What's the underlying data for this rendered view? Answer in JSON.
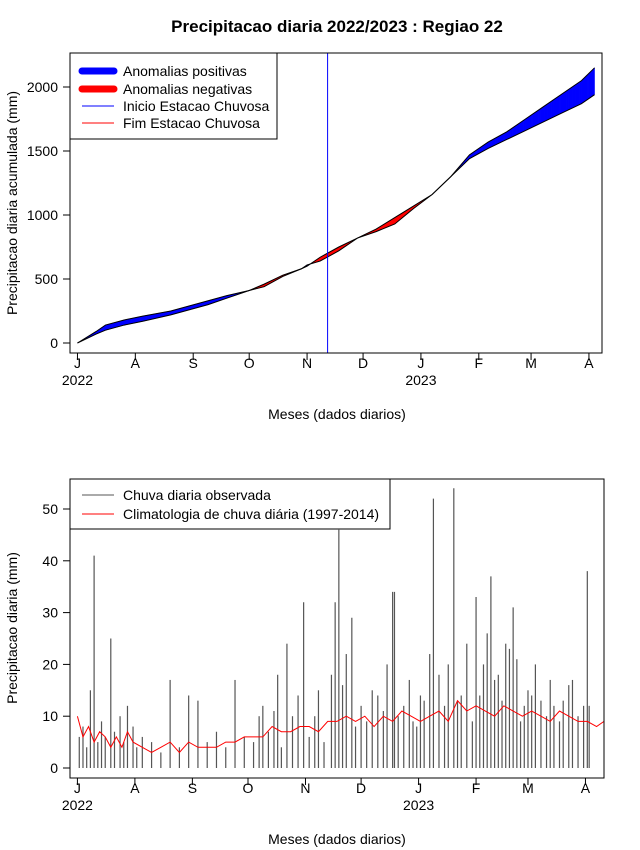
{
  "chart_data": [
    {
      "type": "area",
      "title": "Precipitacao diaria 2022/2023 : Regiao 22",
      "xlabel": "Meses (dados diarios)",
      "ylabel": "Precipitacao diaria acumulada (mm)",
      "ylim": [
        0,
        2200
      ],
      "yticks": [
        0,
        500,
        1000,
        1500,
        2000
      ],
      "xlim_days": [
        -4,
        281
      ],
      "month_ticks": [
        {
          "label": "J",
          "day": 0
        },
        {
          "label": "A",
          "day": 31
        },
        {
          "label": "S",
          "day": 62
        },
        {
          "label": "O",
          "day": 92
        },
        {
          "label": "N",
          "day": 123
        },
        {
          "label": "D",
          "day": 153
        },
        {
          "label": "J",
          "day": 184
        },
        {
          "label": "F",
          "day": 215
        },
        {
          "label": "M",
          "day": 243
        },
        {
          "label": "A",
          "day": 274
        }
      ],
      "year_labels": [
        {
          "label": "2022",
          "day": 0
        },
        {
          "label": "2023",
          "day": 184
        }
      ],
      "rainy_season_start_day": 134,
      "observed_cumulative": {
        "days": [
          0,
          10,
          15,
          25,
          35,
          50,
          60,
          70,
          80,
          92,
          100,
          110,
          120,
          123,
          130,
          140,
          150,
          160,
          170,
          180,
          190,
          200,
          210,
          220,
          230,
          240,
          250,
          260,
          270,
          277
        ],
        "values": [
          0,
          90,
          140,
          180,
          210,
          250,
          290,
          330,
          370,
          410,
          440,
          520,
          580,
          610,
          640,
          720,
          820,
          870,
          930,
          1050,
          1160,
          1300,
          1470,
          1570,
          1650,
          1750,
          1850,
          1950,
          2050,
          2150
        ]
      },
      "climatology_cumulative": {
        "days": [
          0,
          10,
          15,
          25,
          35,
          50,
          60,
          70,
          80,
          92,
          100,
          110,
          120,
          123,
          130,
          140,
          150,
          160,
          170,
          180,
          190,
          200,
          210,
          220,
          230,
          240,
          250,
          260,
          270,
          277
        ],
        "values": [
          0,
          70,
          100,
          140,
          170,
          220,
          260,
          300,
          350,
          410,
          460,
          530,
          580,
          600,
          670,
          750,
          820,
          890,
          980,
          1070,
          1160,
          1300,
          1440,
          1520,
          1590,
          1660,
          1730,
          1800,
          1870,
          1940
        ]
      },
      "legend": {
        "position": "top-left",
        "entries": [
          {
            "label": "Anomalias positivas",
            "color": "#0000ff",
            "style": "thick"
          },
          {
            "label": "Anomalias negativas",
            "color": "#ff0000",
            "style": "thick"
          },
          {
            "label": "Inicio Estacao Chuvosa",
            "color": "#0000ff",
            "style": "thin"
          },
          {
            "label": "Fim Estacao Chuvosa",
            "color": "#ff0000",
            "style": "thin"
          }
        ]
      }
    },
    {
      "type": "bar",
      "xlabel": "Meses (dados diarios)",
      "ylabel": "Precipitacao diaria (mm)",
      "ylim": [
        0,
        55
      ],
      "yticks": [
        0,
        10,
        20,
        30,
        40,
        50
      ],
      "xlim_days": [
        -4,
        284
      ],
      "month_ticks": [
        {
          "label": "J",
          "day": 0
        },
        {
          "label": "A",
          "day": 31
        },
        {
          "label": "S",
          "day": 62
        },
        {
          "label": "O",
          "day": 92
        },
        {
          "label": "N",
          "day": 123
        },
        {
          "label": "D",
          "day": 153
        },
        {
          "label": "J",
          "day": 184
        },
        {
          "label": "F",
          "day": 215
        },
        {
          "label": "M",
          "day": 243
        },
        {
          "label": "A",
          "day": 274
        }
      ],
      "year_labels": [
        {
          "label": "2022",
          "day": 0
        },
        {
          "label": "2023",
          "day": 184
        }
      ],
      "observed_daily_peaks": [
        {
          "day": 1,
          "value": 6
        },
        {
          "day": 3,
          "value": 8
        },
        {
          "day": 5,
          "value": 4
        },
        {
          "day": 7,
          "value": 15
        },
        {
          "day": 9,
          "value": 41
        },
        {
          "day": 11,
          "value": 5
        },
        {
          "day": 13,
          "value": 9
        },
        {
          "day": 15,
          "value": 6
        },
        {
          "day": 18,
          "value": 25
        },
        {
          "day": 20,
          "value": 7
        },
        {
          "day": 23,
          "value": 10
        },
        {
          "day": 25,
          "value": 5
        },
        {
          "day": 27,
          "value": 12
        },
        {
          "day": 30,
          "value": 8
        },
        {
          "day": 32,
          "value": 4
        },
        {
          "day": 35,
          "value": 6
        },
        {
          "day": 40,
          "value": 5
        },
        {
          "day": 45,
          "value": 3
        },
        {
          "day": 50,
          "value": 17
        },
        {
          "day": 55,
          "value": 4
        },
        {
          "day": 60,
          "value": 14
        },
        {
          "day": 65,
          "value": 13
        },
        {
          "day": 70,
          "value": 5
        },
        {
          "day": 75,
          "value": 7
        },
        {
          "day": 80,
          "value": 4
        },
        {
          "day": 85,
          "value": 17
        },
        {
          "day": 90,
          "value": 6
        },
        {
          "day": 95,
          "value": 5
        },
        {
          "day": 98,
          "value": 10
        },
        {
          "day": 100,
          "value": 12
        },
        {
          "day": 103,
          "value": 7
        },
        {
          "day": 106,
          "value": 11
        },
        {
          "day": 108,
          "value": 18
        },
        {
          "day": 110,
          "value": 4
        },
        {
          "day": 113,
          "value": 24
        },
        {
          "day": 116,
          "value": 10
        },
        {
          "day": 119,
          "value": 14
        },
        {
          "day": 122,
          "value": 32
        },
        {
          "day": 125,
          "value": 6
        },
        {
          "day": 128,
          "value": 10
        },
        {
          "day": 130,
          "value": 15
        },
        {
          "day": 133,
          "value": 5
        },
        {
          "day": 137,
          "value": 18
        },
        {
          "day": 139,
          "value": 32
        },
        {
          "day": 141,
          "value": 46
        },
        {
          "day": 143,
          "value": 16
        },
        {
          "day": 145,
          "value": 22
        },
        {
          "day": 148,
          "value": 29
        },
        {
          "day": 150,
          "value": 8
        },
        {
          "day": 153,
          "value": 12
        },
        {
          "day": 156,
          "value": 9
        },
        {
          "day": 159,
          "value": 15
        },
        {
          "day": 162,
          "value": 14
        },
        {
          "day": 165,
          "value": 11
        },
        {
          "day": 167,
          "value": 20
        },
        {
          "day": 170,
          "value": 34
        },
        {
          "day": 171,
          "value": 34
        },
        {
          "day": 173,
          "value": 10
        },
        {
          "day": 176,
          "value": 12
        },
        {
          "day": 179,
          "value": 17
        },
        {
          "day": 181,
          "value": 9
        },
        {
          "day": 183,
          "value": 8
        },
        {
          "day": 185,
          "value": 14
        },
        {
          "day": 187,
          "value": 13
        },
        {
          "day": 190,
          "value": 22
        },
        {
          "day": 192,
          "value": 52
        },
        {
          "day": 195,
          "value": 18
        },
        {
          "day": 198,
          "value": 12
        },
        {
          "day": 200,
          "value": 20
        },
        {
          "day": 203,
          "value": 54
        },
        {
          "day": 205,
          "value": 13
        },
        {
          "day": 207,
          "value": 14
        },
        {
          "day": 210,
          "value": 24
        },
        {
          "day": 213,
          "value": 9
        },
        {
          "day": 215,
          "value": 33
        },
        {
          "day": 217,
          "value": 14
        },
        {
          "day": 219,
          "value": 20
        },
        {
          "day": 221,
          "value": 26
        },
        {
          "day": 223,
          "value": 37
        },
        {
          "day": 225,
          "value": 17
        },
        {
          "day": 227,
          "value": 18
        },
        {
          "day": 229,
          "value": 13
        },
        {
          "day": 231,
          "value": 24
        },
        {
          "day": 233,
          "value": 23
        },
        {
          "day": 235,
          "value": 31
        },
        {
          "day": 237,
          "value": 21
        },
        {
          "day": 239,
          "value": 9
        },
        {
          "day": 241,
          "value": 12
        },
        {
          "day": 243,
          "value": 15
        },
        {
          "day": 245,
          "value": 14
        },
        {
          "day": 247,
          "value": 20
        },
        {
          "day": 250,
          "value": 13
        },
        {
          "day": 253,
          "value": 10
        },
        {
          "day": 255,
          "value": 17
        },
        {
          "day": 257,
          "value": 12
        },
        {
          "day": 260,
          "value": 9
        },
        {
          "day": 262,
          "value": 13
        },
        {
          "day": 265,
          "value": 16
        },
        {
          "day": 267,
          "value": 17
        },
        {
          "day": 270,
          "value": 10
        },
        {
          "day": 273,
          "value": 12
        },
        {
          "day": 275,
          "value": 38
        },
        {
          "day": 276,
          "value": 12
        }
      ],
      "climatology_daily": {
        "days": [
          0,
          3,
          6,
          9,
          12,
          15,
          18,
          21,
          24,
          27,
          30,
          35,
          40,
          45,
          50,
          55,
          60,
          65,
          70,
          75,
          80,
          85,
          90,
          95,
          100,
          105,
          110,
          115,
          120,
          125,
          130,
          135,
          140,
          145,
          150,
          155,
          160,
          165,
          170,
          175,
          180,
          185,
          190,
          195,
          200,
          205,
          210,
          215,
          220,
          225,
          230,
          235,
          240,
          245,
          250,
          255,
          260,
          265,
          270,
          275,
          280,
          284
        ],
        "values": [
          10,
          6,
          8,
          5,
          7,
          6,
          4,
          6,
          4,
          7,
          5,
          4,
          3,
          4,
          5,
          3,
          5,
          4,
          4,
          4,
          5,
          5,
          6,
          6,
          6,
          8,
          7,
          7,
          8,
          8,
          7,
          9,
          9,
          10,
          9,
          10,
          8,
          10,
          9,
          11,
          10,
          9,
          10,
          11,
          9,
          13,
          11,
          12,
          11,
          10,
          12,
          11,
          10,
          11,
          10,
          9,
          11,
          10,
          9,
          9,
          8,
          9
        ]
      },
      "legend": {
        "position": "top-left",
        "entries": [
          {
            "label": "Chuva diaria observada",
            "color": "#555555"
          },
          {
            "label": "Climatologia de chuva diária (1997-2014)",
            "color": "#ff0000"
          }
        ]
      }
    }
  ]
}
